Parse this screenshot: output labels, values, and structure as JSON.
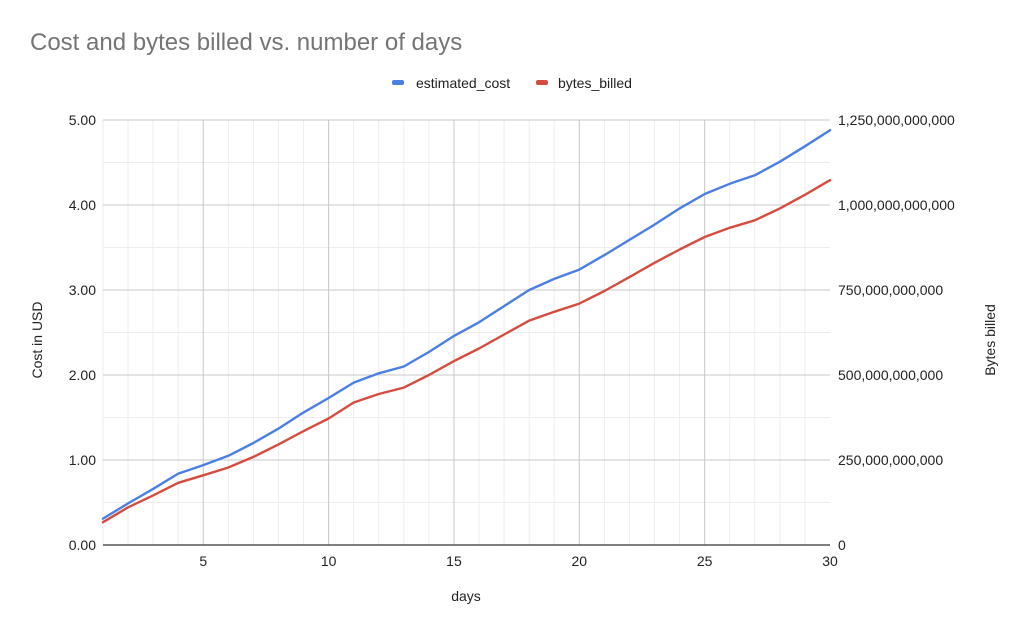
{
  "chart_data": {
    "type": "line",
    "title": "Cost and bytes billed vs. number of days",
    "xlabel": "days",
    "ylabel": "Cost in USD",
    "y2label": "Bytes billed",
    "xlim": [
      1,
      30
    ],
    "ylim": [
      0,
      5
    ],
    "y2lim": [
      0,
      1250000000000
    ],
    "x_ticks": [
      5,
      10,
      15,
      20,
      25,
      30
    ],
    "x_tick_labels": [
      "5",
      "10",
      "15",
      "20",
      "25",
      "30"
    ],
    "y_ticks": [
      0,
      1,
      2,
      3,
      4,
      5
    ],
    "y_tick_labels": [
      "0.00",
      "1.00",
      "2.00",
      "3.00",
      "4.00",
      "5.00"
    ],
    "y2_ticks": [
      0,
      250000000000,
      500000000000,
      750000000000,
      1000000000000,
      1250000000000
    ],
    "y2_tick_labels": [
      "0",
      "250,000,000,000",
      "500,000,000,000",
      "750,000,000,000",
      "1,000,000,000,000",
      "1,250,000,000,000"
    ],
    "legend": [
      "estimated_cost",
      "bytes_billed"
    ],
    "legend_position": "top",
    "grid": true,
    "x": [
      1,
      2,
      3,
      4,
      5,
      6,
      7,
      8,
      9,
      10,
      11,
      12,
      13,
      14,
      15,
      16,
      17,
      18,
      19,
      20,
      21,
      22,
      23,
      24,
      25,
      26,
      27,
      28,
      29,
      30
    ],
    "series": [
      {
        "name": "estimated_cost",
        "axis": "left",
        "color": "#4a7fe3",
        "values": [
          0.31,
          0.49,
          0.66,
          0.84,
          0.94,
          1.05,
          1.2,
          1.37,
          1.56,
          1.73,
          1.91,
          2.02,
          2.1,
          2.27,
          2.46,
          2.62,
          2.81,
          3.0,
          3.13,
          3.24,
          3.41,
          3.59,
          3.77,
          3.96,
          4.13,
          4.25,
          4.35,
          4.51,
          4.69,
          4.88
        ]
      },
      {
        "name": "bytes_billed",
        "axis": "right",
        "color": "#d64d3f",
        "values": [
          67000000000,
          111000000000,
          146000000000,
          183000000000,
          205000000000,
          228000000000,
          259000000000,
          296000000000,
          335000000000,
          372000000000,
          419000000000,
          444000000000,
          463000000000,
          500000000000,
          541000000000,
          578000000000,
          619000000000,
          660000000000,
          686000000000,
          710000000000,
          747000000000,
          788000000000,
          830000000000,
          869000000000,
          906000000000,
          933000000000,
          955000000000,
          990000000000,
          1030000000000,
          1073000000000
        ]
      }
    ]
  }
}
